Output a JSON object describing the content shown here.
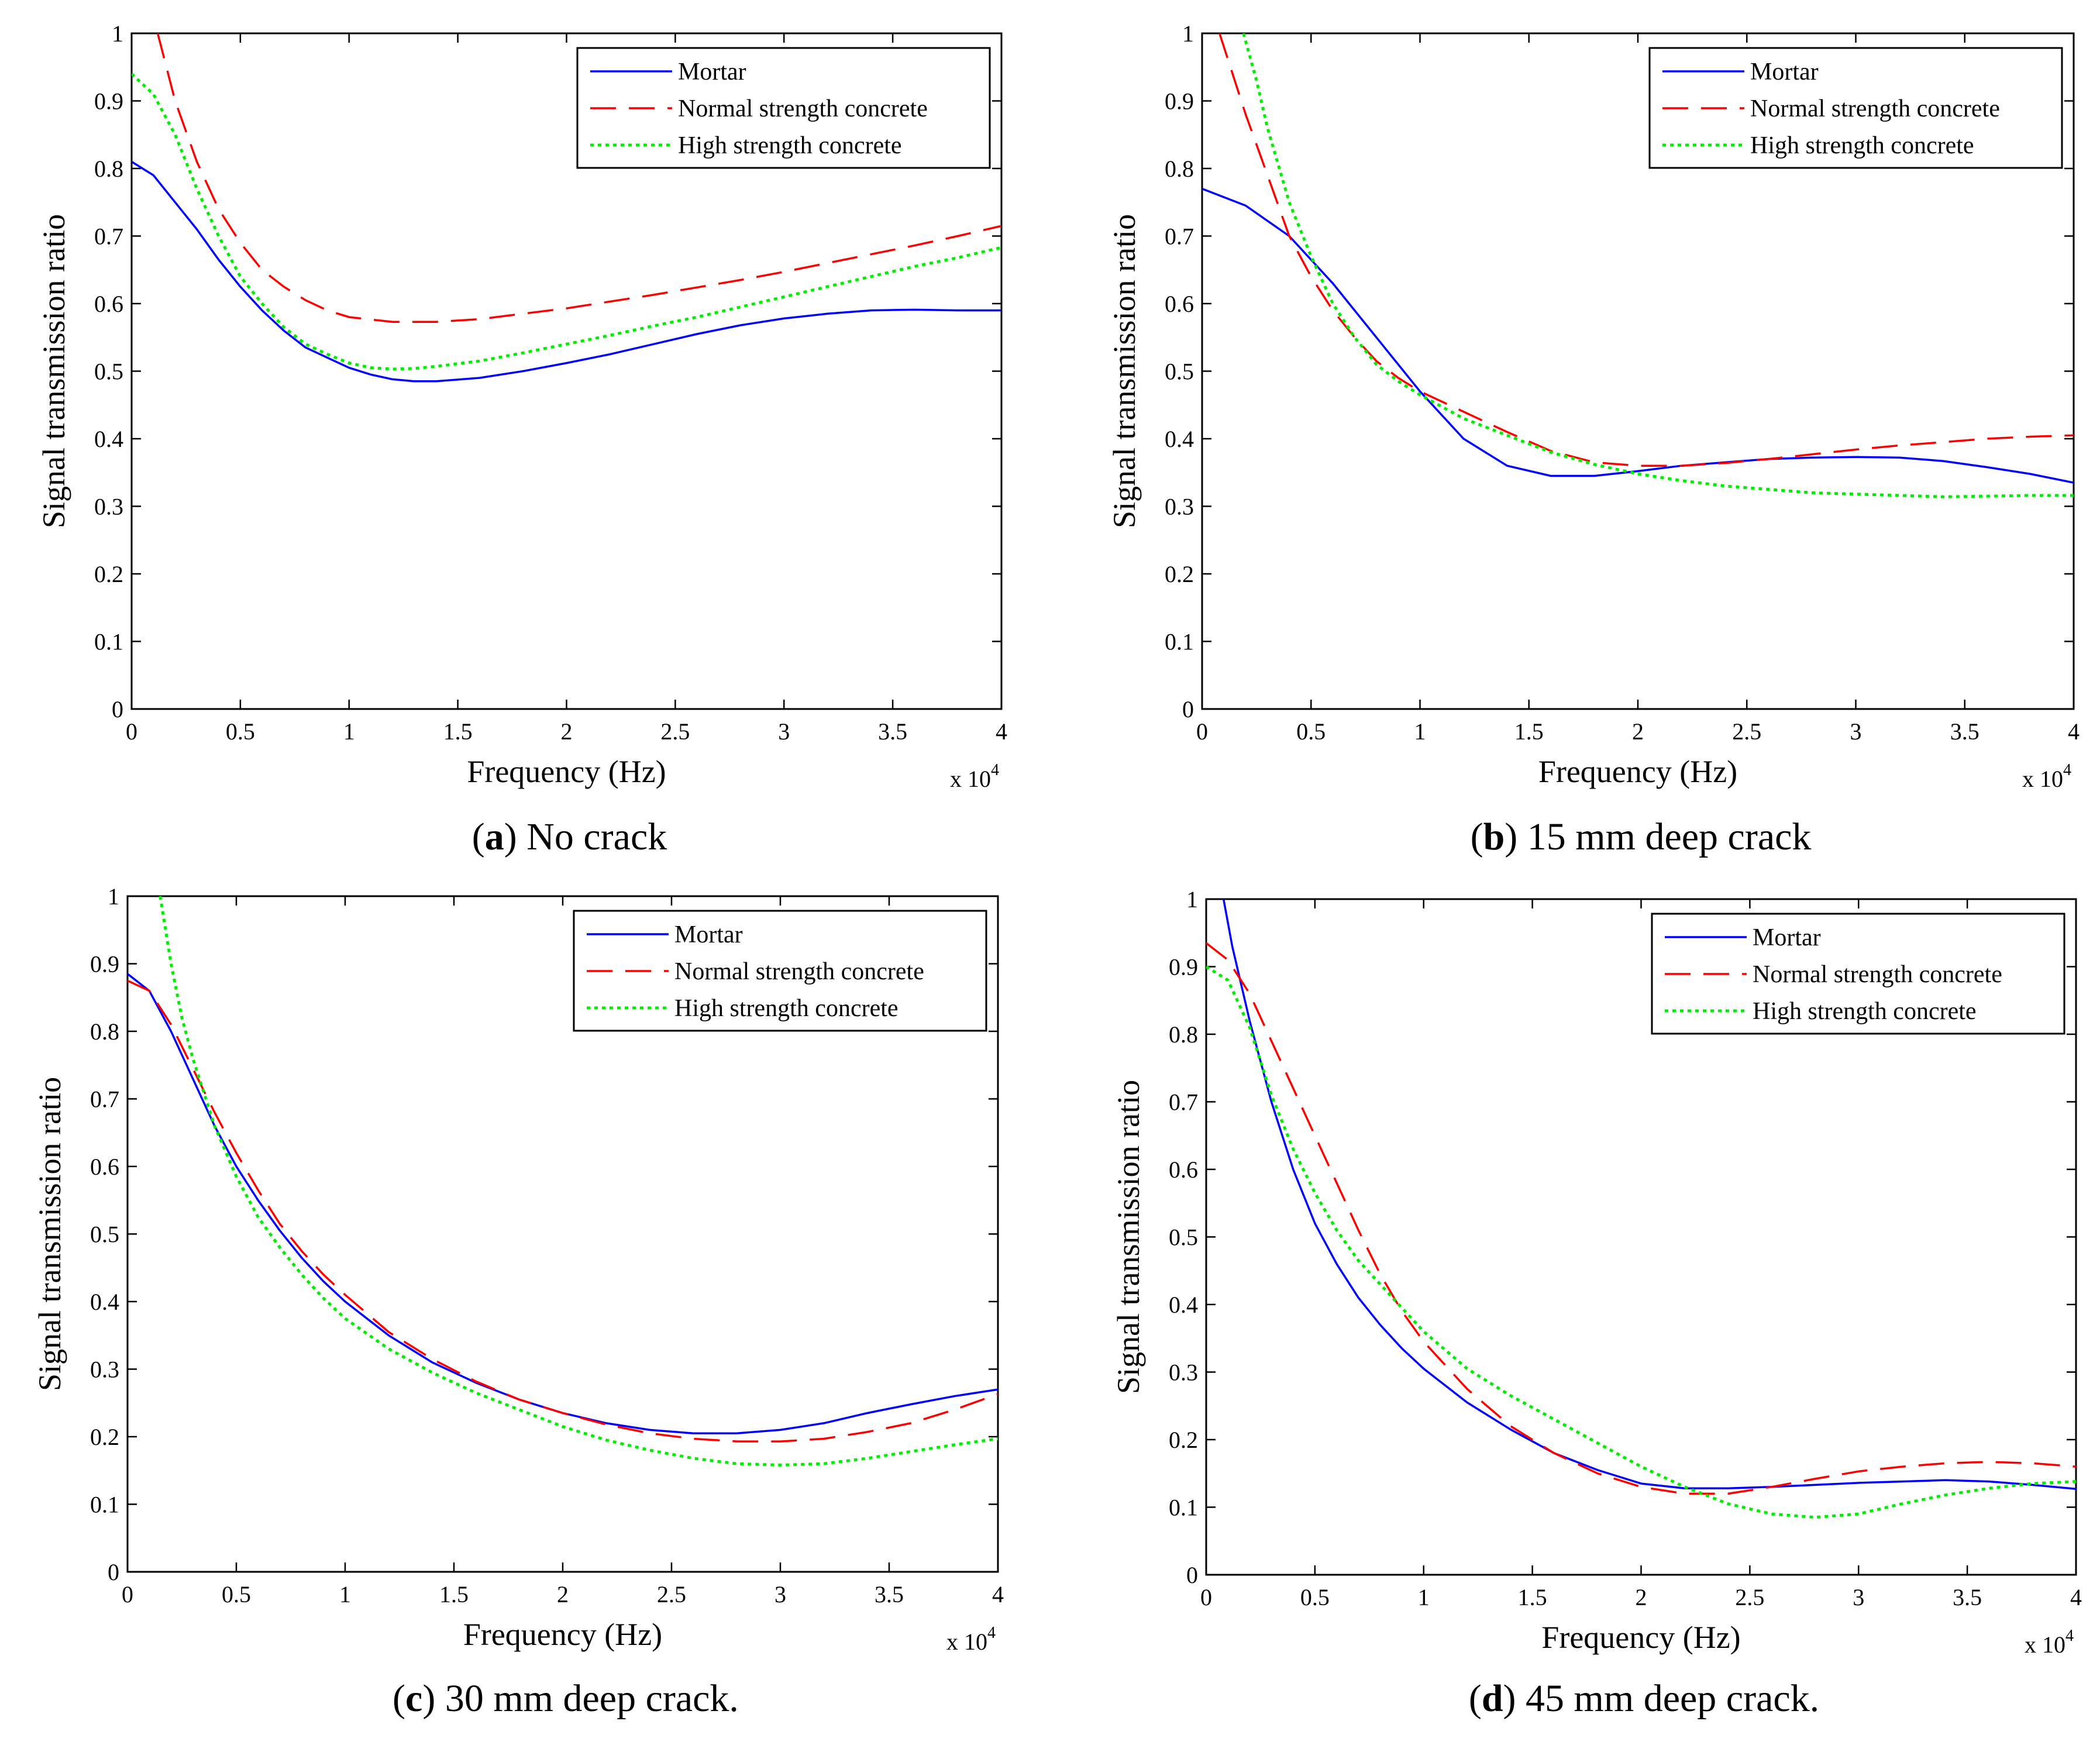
{
  "colors": {
    "mortar": "#0000ff",
    "normal": "#ff0000",
    "high": "#00ee00",
    "axis": "#000000",
    "background": "#ffffff"
  },
  "chart_data": [
    {
      "type": "line",
      "caption_letter": "a",
      "caption_text": " No crack",
      "xlabel": "Frequency (Hz)",
      "ylabel": "Signal transmission ratio",
      "x_multiplier": "x 10",
      "x_multiplier_exp": "4",
      "xlim": [
        0,
        4
      ],
      "ylim": [
        0,
        1
      ],
      "xticks": [
        0,
        0.5,
        1,
        1.5,
        2,
        2.5,
        3,
        3.5,
        4
      ],
      "xtick_labels": [
        "0",
        "0.5",
        "1",
        "1.5",
        "2",
        "2.5",
        "3",
        "3.5",
        "4"
      ],
      "yticks": [
        0,
        0.1,
        0.2,
        0.3,
        0.4,
        0.5,
        0.6,
        0.7,
        0.8,
        0.9,
        1
      ],
      "ytick_labels": [
        "0",
        "0.1",
        "0.2",
        "0.3",
        "0.4",
        "0.5",
        "0.6",
        "0.7",
        "0.8",
        "0.9",
        "1"
      ],
      "legend_position": "top-right",
      "series": [
        {
          "name": "Mortar",
          "style": "solid",
          "x": [
            0,
            0.1,
            0.2,
            0.3,
            0.4,
            0.5,
            0.6,
            0.7,
            0.8,
            0.9,
            1.0,
            1.1,
            1.2,
            1.3,
            1.4,
            1.6,
            1.8,
            2.0,
            2.2,
            2.4,
            2.6,
            2.8,
            3.0,
            3.2,
            3.4,
            3.6,
            3.8,
            4.0
          ],
          "values": [
            0.81,
            0.79,
            0.75,
            0.71,
            0.665,
            0.625,
            0.59,
            0.56,
            0.535,
            0.52,
            0.505,
            0.495,
            0.488,
            0.485,
            0.485,
            0.49,
            0.5,
            0.512,
            0.525,
            0.54,
            0.555,
            0.568,
            0.578,
            0.585,
            0.59,
            0.591,
            0.59,
            0.59
          ]
        },
        {
          "name": "Normal strength concrete",
          "style": "dash",
          "x": [
            0.12,
            0.2,
            0.3,
            0.4,
            0.5,
            0.6,
            0.7,
            0.8,
            0.9,
            1.0,
            1.2,
            1.4,
            1.6,
            1.8,
            2.0,
            2.2,
            2.4,
            2.6,
            2.8,
            3.0,
            3.2,
            3.4,
            3.6,
            3.8,
            4.0
          ],
          "values": [
            1.0,
            0.9,
            0.81,
            0.74,
            0.69,
            0.65,
            0.625,
            0.605,
            0.59,
            0.58,
            0.573,
            0.573,
            0.577,
            0.585,
            0.593,
            0.603,
            0.613,
            0.624,
            0.635,
            0.647,
            0.66,
            0.673,
            0.686,
            0.7,
            0.715
          ]
        },
        {
          "name": "High strength concrete",
          "style": "dot",
          "x": [
            0,
            0.1,
            0.2,
            0.3,
            0.4,
            0.5,
            0.6,
            0.7,
            0.8,
            0.9,
            1.0,
            1.1,
            1.2,
            1.3,
            1.4,
            1.6,
            1.8,
            2.0,
            2.2,
            2.4,
            2.6,
            2.8,
            3.0,
            3.2,
            3.4,
            3.6,
            3.8,
            4.0
          ],
          "values": [
            0.94,
            0.91,
            0.85,
            0.77,
            0.7,
            0.64,
            0.6,
            0.565,
            0.54,
            0.525,
            0.512,
            0.505,
            0.503,
            0.504,
            0.507,
            0.515,
            0.527,
            0.54,
            0.553,
            0.567,
            0.58,
            0.595,
            0.61,
            0.625,
            0.64,
            0.655,
            0.668,
            0.683
          ]
        }
      ]
    },
    {
      "type": "line",
      "caption_letter": "b",
      "caption_text": " 15 mm deep crack",
      "xlabel": "Frequency (Hz)",
      "ylabel": "Signal transmission ratio",
      "x_multiplier": "x 10",
      "x_multiplier_exp": "4",
      "xlim": [
        0,
        4
      ],
      "ylim": [
        0,
        1
      ],
      "xticks": [
        0,
        0.5,
        1,
        1.5,
        2,
        2.5,
        3,
        3.5,
        4
      ],
      "xtick_labels": [
        "0",
        "0.5",
        "1",
        "1.5",
        "2",
        "2.5",
        "3",
        "3.5",
        "4"
      ],
      "yticks": [
        0,
        0.1,
        0.2,
        0.3,
        0.4,
        0.5,
        0.6,
        0.7,
        0.8,
        0.9,
        1
      ],
      "ytick_labels": [
        "0",
        "0.1",
        "0.2",
        "0.3",
        "0.4",
        "0.5",
        "0.6",
        "0.7",
        "0.8",
        "0.9",
        "1"
      ],
      "legend_position": "top-right",
      "series": [
        {
          "name": "Mortar",
          "style": "solid",
          "x": [
            0,
            0.2,
            0.4,
            0.6,
            0.8,
            1.0,
            1.2,
            1.4,
            1.6,
            1.8,
            2.0,
            2.2,
            2.4,
            2.6,
            2.8,
            3.0,
            3.2,
            3.4,
            3.6,
            3.8,
            4.0
          ],
          "values": [
            0.77,
            0.745,
            0.7,
            0.63,
            0.55,
            0.47,
            0.4,
            0.36,
            0.345,
            0.345,
            0.352,
            0.36,
            0.365,
            0.37,
            0.372,
            0.373,
            0.372,
            0.367,
            0.358,
            0.348,
            0.335
          ]
        },
        {
          "name": "Normal strength concrete",
          "style": "dash",
          "x": [
            0.08,
            0.2,
            0.3,
            0.4,
            0.5,
            0.6,
            0.7,
            0.8,
            0.9,
            1.0,
            1.2,
            1.4,
            1.6,
            1.8,
            2.0,
            2.2,
            2.4,
            2.6,
            2.8,
            3.0,
            3.2,
            3.4,
            3.6,
            3.8,
            4.0
          ],
          "values": [
            1.0,
            0.88,
            0.79,
            0.7,
            0.64,
            0.59,
            0.55,
            0.515,
            0.49,
            0.47,
            0.44,
            0.41,
            0.382,
            0.365,
            0.36,
            0.36,
            0.364,
            0.37,
            0.377,
            0.384,
            0.39,
            0.395,
            0.4,
            0.403,
            0.405
          ]
        },
        {
          "name": "High strength concrete",
          "style": "dot",
          "x": [
            0.19,
            0.25,
            0.3,
            0.4,
            0.5,
            0.6,
            0.7,
            0.8,
            0.9,
            1.0,
            1.2,
            1.4,
            1.6,
            1.8,
            2.0,
            2.2,
            2.4,
            2.6,
            2.8,
            3.0,
            3.2,
            3.4,
            3.6,
            3.8,
            4.0
          ],
          "values": [
            1.0,
            0.93,
            0.86,
            0.75,
            0.67,
            0.6,
            0.55,
            0.51,
            0.485,
            0.465,
            0.43,
            0.405,
            0.38,
            0.362,
            0.348,
            0.338,
            0.33,
            0.325,
            0.32,
            0.318,
            0.316,
            0.314,
            0.315,
            0.316,
            0.316
          ]
        }
      ]
    },
    {
      "type": "line",
      "caption_letter": "c",
      "caption_text": " 30 mm deep crack.",
      "xlabel": "Frequency (Hz)",
      "ylabel": "Signal transmission ratio",
      "x_multiplier": "x 10",
      "x_multiplier_exp": "4",
      "xlim": [
        0,
        4
      ],
      "ylim": [
        0,
        1
      ],
      "xticks": [
        0,
        0.5,
        1,
        1.5,
        2,
        2.5,
        3,
        3.5,
        4
      ],
      "xtick_labels": [
        "0",
        "0.5",
        "1",
        "1.5",
        "2",
        "2.5",
        "3",
        "3.5",
        "4"
      ],
      "yticks": [
        0,
        0.1,
        0.2,
        0.3,
        0.4,
        0.5,
        0.6,
        0.7,
        0.8,
        0.9,
        1
      ],
      "ytick_labels": [
        "0",
        "0.1",
        "0.2",
        "0.3",
        "0.4",
        "0.5",
        "0.6",
        "0.7",
        "0.8",
        "0.9",
        "1"
      ],
      "legend_position": "top-right",
      "series": [
        {
          "name": "Mortar",
          "style": "solid",
          "x": [
            0,
            0.1,
            0.2,
            0.3,
            0.4,
            0.5,
            0.6,
            0.7,
            0.8,
            0.9,
            1.0,
            1.2,
            1.4,
            1.6,
            1.8,
            2.0,
            2.2,
            2.4,
            2.6,
            2.8,
            3.0,
            3.2,
            3.4,
            3.6,
            3.8,
            4.0
          ],
          "values": [
            0.885,
            0.86,
            0.8,
            0.73,
            0.66,
            0.6,
            0.55,
            0.505,
            0.465,
            0.43,
            0.4,
            0.35,
            0.31,
            0.28,
            0.255,
            0.235,
            0.22,
            0.21,
            0.205,
            0.205,
            0.21,
            0.22,
            0.235,
            0.248,
            0.26,
            0.27
          ]
        },
        {
          "name": "Normal strength concrete",
          "style": "dash",
          "x": [
            0,
            0.1,
            0.2,
            0.3,
            0.4,
            0.5,
            0.6,
            0.7,
            0.8,
            0.9,
            1.0,
            1.2,
            1.4,
            1.6,
            1.8,
            2.0,
            2.2,
            2.4,
            2.6,
            2.8,
            3.0,
            3.2,
            3.4,
            3.6,
            3.8,
            4.0
          ],
          "values": [
            0.875,
            0.86,
            0.81,
            0.745,
            0.68,
            0.62,
            0.565,
            0.515,
            0.475,
            0.44,
            0.41,
            0.355,
            0.315,
            0.282,
            0.255,
            0.235,
            0.218,
            0.205,
            0.197,
            0.193,
            0.193,
            0.197,
            0.207,
            0.22,
            0.24,
            0.263
          ]
        },
        {
          "name": "High strength concrete",
          "style": "dot",
          "x": [
            0.15,
            0.2,
            0.25,
            0.3,
            0.4,
            0.5,
            0.6,
            0.7,
            0.8,
            0.9,
            1.0,
            1.2,
            1.4,
            1.6,
            1.8,
            2.0,
            2.2,
            2.4,
            2.6,
            2.8,
            3.0,
            3.2,
            3.4,
            3.6,
            3.8,
            4.0
          ],
          "values": [
            1.0,
            0.9,
            0.82,
            0.76,
            0.66,
            0.585,
            0.525,
            0.48,
            0.44,
            0.405,
            0.375,
            0.33,
            0.295,
            0.265,
            0.24,
            0.215,
            0.195,
            0.18,
            0.168,
            0.16,
            0.158,
            0.16,
            0.168,
            0.178,
            0.188,
            0.197
          ]
        }
      ]
    },
    {
      "type": "line",
      "caption_letter": "d",
      "caption_text": " 45 mm deep crack.",
      "xlabel": "Frequency (Hz)",
      "ylabel": "Signal transmission ratio",
      "x_multiplier": "x 10",
      "x_multiplier_exp": "4",
      "xlim": [
        0,
        4
      ],
      "ylim": [
        0,
        1
      ],
      "xticks": [
        0,
        0.5,
        1,
        1.5,
        2,
        2.5,
        3,
        3.5,
        4
      ],
      "xtick_labels": [
        "0",
        "0.5",
        "1",
        "1.5",
        "2",
        "2.5",
        "3",
        "3.5",
        "4"
      ],
      "yticks": [
        0,
        0.1,
        0.2,
        0.3,
        0.4,
        0.5,
        0.6,
        0.7,
        0.8,
        0.9,
        1
      ],
      "ytick_labels": [
        "0",
        "0.1",
        "0.2",
        "0.3",
        "0.4",
        "0.5",
        "0.6",
        "0.7",
        "0.8",
        "0.9",
        "1"
      ],
      "legend_position": "top-right",
      "series": [
        {
          "name": "Mortar",
          "style": "solid",
          "x": [
            0.08,
            0.12,
            0.2,
            0.3,
            0.4,
            0.5,
            0.6,
            0.7,
            0.8,
            0.9,
            1.0,
            1.2,
            1.4,
            1.6,
            1.8,
            2.0,
            2.2,
            2.4,
            2.6,
            2.8,
            3.0,
            3.2,
            3.4,
            3.6,
            3.8,
            4.0
          ],
          "values": [
            1.0,
            0.93,
            0.82,
            0.7,
            0.6,
            0.52,
            0.46,
            0.41,
            0.37,
            0.335,
            0.305,
            0.255,
            0.215,
            0.18,
            0.155,
            0.135,
            0.128,
            0.128,
            0.13,
            0.133,
            0.136,
            0.138,
            0.14,
            0.138,
            0.133,
            0.127
          ]
        },
        {
          "name": "Normal strength concrete",
          "style": "dash",
          "x": [
            0,
            0.1,
            0.2,
            0.3,
            0.4,
            0.5,
            0.6,
            0.7,
            0.8,
            0.9,
            1.0,
            1.2,
            1.4,
            1.6,
            1.8,
            2.0,
            2.2,
            2.4,
            2.6,
            2.8,
            3.0,
            3.2,
            3.4,
            3.6,
            3.8,
            4.0
          ],
          "values": [
            0.935,
            0.91,
            0.86,
            0.79,
            0.72,
            0.65,
            0.58,
            0.51,
            0.445,
            0.39,
            0.345,
            0.275,
            0.22,
            0.18,
            0.15,
            0.13,
            0.12,
            0.12,
            0.13,
            0.142,
            0.153,
            0.16,
            0.165,
            0.167,
            0.165,
            0.16
          ]
        },
        {
          "name": "High strength concrete",
          "style": "dot",
          "x": [
            0,
            0.1,
            0.2,
            0.3,
            0.4,
            0.5,
            0.6,
            0.7,
            0.8,
            0.9,
            1.0,
            1.2,
            1.4,
            1.6,
            1.8,
            2.0,
            2.2,
            2.4,
            2.6,
            2.8,
            3.0,
            3.2,
            3.4,
            3.6,
            3.8,
            4.0
          ],
          "values": [
            0.9,
            0.88,
            0.81,
            0.71,
            0.63,
            0.565,
            0.51,
            0.465,
            0.43,
            0.395,
            0.36,
            0.305,
            0.265,
            0.23,
            0.195,
            0.16,
            0.13,
            0.105,
            0.09,
            0.085,
            0.09,
            0.105,
            0.118,
            0.128,
            0.135,
            0.138
          ]
        }
      ]
    }
  ]
}
